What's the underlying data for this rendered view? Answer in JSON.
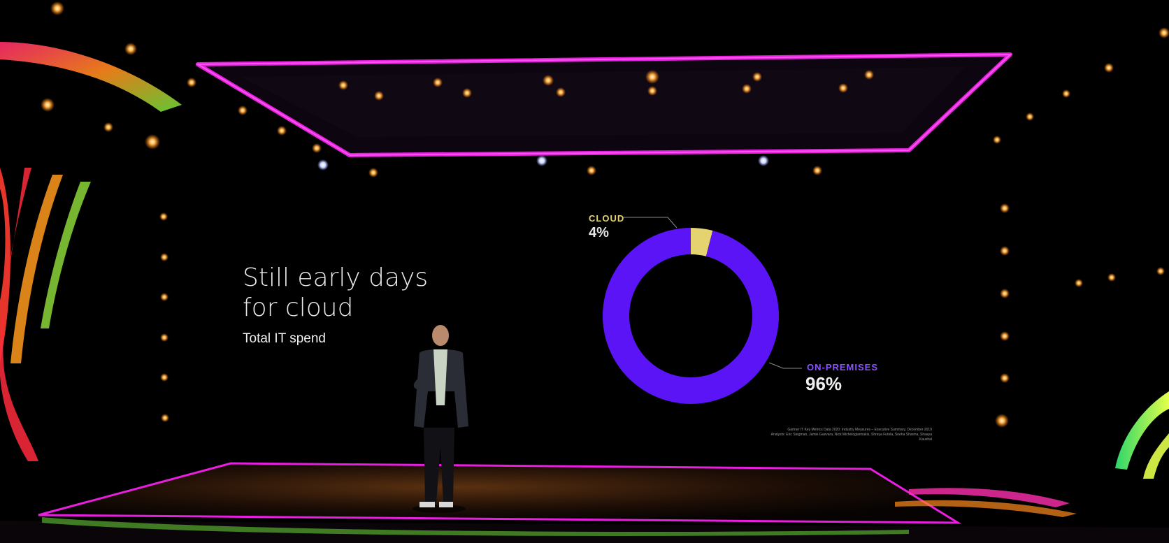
{
  "slide": {
    "headline_line1": "Still early days",
    "headline_line2": "for cloud",
    "subtitle": "Total IT spend",
    "source_line1": "Gartner IT Key Metrics Data 2020: Industry Measures – Executive Summary, December 2019",
    "source_line2": "Analysts: Eric Stegman, Jamie Guevara, Nick Michelogiannakis, Shreya Futela, Sneha Sharma, Shaaya Kaushal"
  },
  "chart_data": {
    "type": "pie",
    "variant": "donut",
    "title": "Total IT spend",
    "categories": [
      "CLOUD",
      "ON-PREMISES"
    ],
    "values": [
      4,
      96
    ],
    "labels": [
      "4%",
      "96%"
    ],
    "colors": [
      "#e4d36e",
      "#5a14f5"
    ],
    "label_colors": [
      "#e4d36e",
      "#8a52ff"
    ]
  },
  "colors": {
    "neon_frame": "#e81fdf",
    "background": "#000000"
  }
}
